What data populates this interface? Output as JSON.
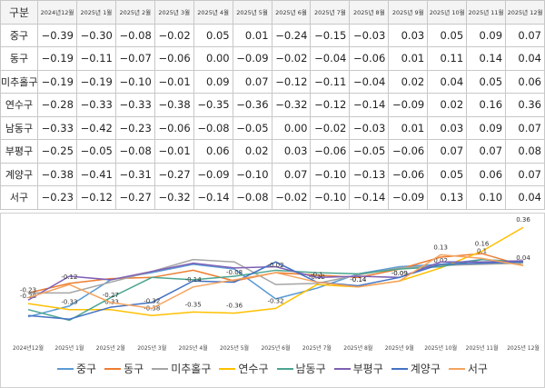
{
  "table": {
    "header": [
      "구분",
      "2024년12월",
      "2025년 1월",
      "2025년 2월",
      "2025년 3월",
      "2025년 4월",
      "2025년 5월",
      "2025년 6월",
      "2025년 7월",
      "2025년 8월",
      "2025년 9월",
      "2025년 10월",
      "2025년 11월",
      "2025년 12월"
    ],
    "rows": [
      [
        "중구",
        "−0.39",
        "−0.30",
        "−0.08",
        "−0.02",
        "0.05",
        "0.01",
        "−0.24",
        "−0.15",
        "−0.03",
        "0.03",
        "0.05",
        "0.09",
        "0.07"
      ],
      [
        "동구",
        "−0.19",
        "−0.11",
        "−0.07",
        "−0.06",
        "0.00",
        "−0.09",
        "−0.02",
        "−0.04",
        "−0.06",
        "0.01",
        "0.11",
        "0.14",
        "0.04"
      ],
      [
        "미추홀구",
        "−0.19",
        "−0.19",
        "−0.10",
        "−0.01",
        "0.09",
        "0.07",
        "−0.12",
        "−0.11",
        "−0.04",
        "0.02",
        "0.04",
        "0.05",
        "0.06"
      ],
      [
        "연수구",
        "−0.28",
        "−0.33",
        "−0.33",
        "−0.38",
        "−0.35",
        "−0.36",
        "−0.32",
        "−0.12",
        "−0.14",
        "−0.09",
        "0.02",
        "0.16",
        "0.36"
      ],
      [
        "남동구",
        "−0.33",
        "−0.42",
        "−0.23",
        "−0.06",
        "−0.08",
        "−0.05",
        "0.00",
        "−0.02",
        "−0.03",
        "0.01",
        "0.03",
        "0.09",
        "0.07"
      ],
      [
        "부평구",
        "−0.25",
        "−0.05",
        "−0.08",
        "−0.01",
        "0.06",
        "0.02",
        "0.03",
        "−0.06",
        "−0.05",
        "−0.06",
        "0.07",
        "0.07",
        "0.08"
      ],
      [
        "계양구",
        "−0.38",
        "−0.41",
        "−0.31",
        "−0.27",
        "−0.09",
        "−0.10",
        "0.07",
        "−0.10",
        "−0.13",
        "−0.06",
        "0.05",
        "0.06",
        "0.07"
      ],
      [
        "서구",
        "−0.23",
        "−0.12",
        "−0.27",
        "−0.32",
        "−0.14",
        "−0.08",
        "−0.02",
        "−0.10",
        "−0.14",
        "−0.09",
        "0.13",
        "0.10",
        "0.04"
      ]
    ]
  },
  "chart_data": {
    "type": "line",
    "categories": [
      "2024년12월",
      "2025년 1월",
      "2025년 2월",
      "2025년 3월",
      "2025년 4월",
      "2025년 5월",
      "2025년 6월",
      "2025년 7월",
      "2025년 8월",
      "2025년 9월",
      "2025년 10월",
      "2025년 11월",
      "2025년 12월"
    ],
    "ylim": [
      -0.5,
      0.4
    ],
    "series": [
      {
        "name": "중구",
        "color": "#5b9bd5",
        "values": [
          -0.39,
          -0.3,
          -0.08,
          -0.02,
          0.05,
          0.01,
          -0.24,
          -0.15,
          -0.03,
          0.03,
          0.05,
          0.09,
          0.07
        ]
      },
      {
        "name": "동구",
        "color": "#ed7d31",
        "values": [
          -0.19,
          -0.11,
          -0.07,
          -0.06,
          0.0,
          -0.09,
          -0.02,
          -0.04,
          -0.06,
          0.01,
          0.11,
          0.14,
          0.04
        ]
      },
      {
        "name": "미추홀구",
        "color": "#a5a5a5",
        "values": [
          -0.19,
          -0.19,
          -0.1,
          -0.01,
          0.09,
          0.07,
          -0.12,
          -0.11,
          -0.04,
          0.02,
          0.04,
          0.05,
          0.06
        ]
      },
      {
        "name": "연수구",
        "color": "#ffc000",
        "labels": true,
        "values": [
          -0.28,
          -0.33,
          -0.33,
          -0.38,
          -0.35,
          -0.36,
          -0.32,
          -0.12,
          -0.14,
          -0.09,
          0.02,
          0.16,
          0.36
        ]
      },
      {
        "name": "남동구",
        "color": "#4aa58f",
        "values": [
          -0.33,
          -0.42,
          -0.23,
          -0.06,
          -0.08,
          -0.05,
          0.0,
          -0.02,
          -0.03,
          0.01,
          0.03,
          0.09,
          0.07
        ]
      },
      {
        "name": "부평구",
        "color": "#7e5fb5",
        "values": [
          -0.25,
          -0.05,
          -0.08,
          -0.01,
          0.06,
          0.02,
          0.03,
          -0.06,
          -0.05,
          -0.06,
          0.07,
          0.07,
          0.08
        ]
      },
      {
        "name": "계양구",
        "color": "#4472c4",
        "values": [
          -0.38,
          -0.41,
          -0.31,
          -0.27,
          -0.09,
          -0.1,
          0.07,
          -0.1,
          -0.13,
          -0.06,
          0.05,
          0.06,
          0.07
        ]
      },
      {
        "name": "서구",
        "color": "#f4a460",
        "labels": true,
        "values": [
          -0.23,
          -0.12,
          -0.27,
          -0.32,
          -0.14,
          -0.08,
          -0.02,
          -0.1,
          -0.14,
          -0.09,
          0.13,
          0.1,
          0.04
        ]
      }
    ]
  }
}
